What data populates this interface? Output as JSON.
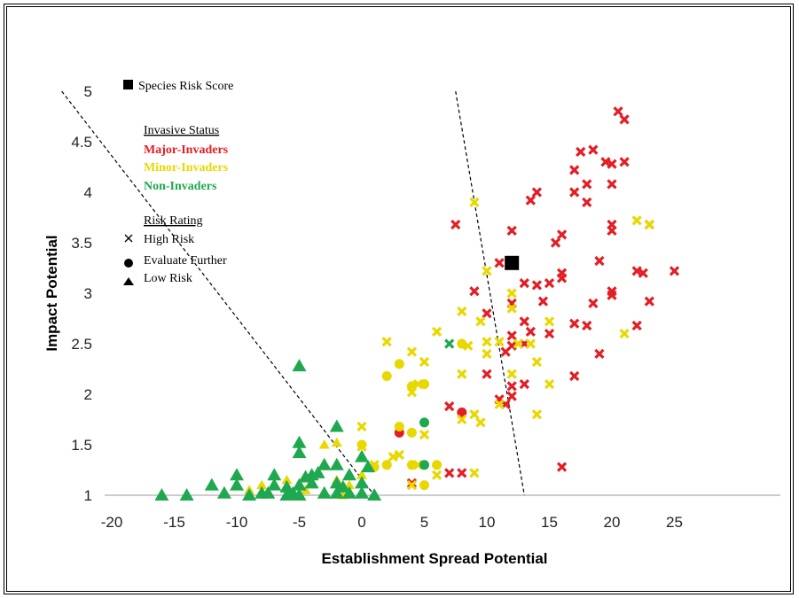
{
  "chart_data": {
    "type": "scatter",
    "title": "",
    "xlabel": "Establishment Spread Potential",
    "ylabel": "Impact Potential",
    "xlim": [
      -20,
      28
    ],
    "ylim": [
      1,
      5.2
    ],
    "xticks": [
      "-20",
      "-15",
      "-10",
      "-5",
      "0",
      "5",
      "10",
      "15",
      "20",
      "25"
    ],
    "yticks": [
      "1",
      "1.5",
      "2",
      "2.5",
      "3",
      "3.5",
      "4",
      "4.5",
      "5"
    ],
    "grid": false,
    "legend_placement": "top-left",
    "colors": {
      "major": "#e31e24",
      "minor": "#e8d800",
      "non": "#1fa84f"
    },
    "threshold_lines": [
      {
        "from": [
          -24,
          5
        ],
        "to": [
          1,
          1
        ]
      },
      {
        "from": [
          7.5,
          5
        ],
        "to": [
          13,
          1
        ]
      }
    ],
    "species_risk_score": {
      "x": 12,
      "y": 3.3
    },
    "legend": {
      "score_label": "Species Risk Score",
      "status_title": "Invasive Status",
      "status_items": [
        {
          "label": "Major-Invaders",
          "key": "major"
        },
        {
          "label": "Minor-Invaders",
          "key": "minor"
        },
        {
          "label": "Non-Invaders",
          "key": "non"
        }
      ],
      "rating_title": "Risk Rating",
      "rating_items": [
        {
          "label": "High Risk",
          "marker": "x"
        },
        {
          "label": "Evaluate Further",
          "marker": "circle"
        },
        {
          "label": "Low Risk",
          "marker": "triangle"
        }
      ]
    },
    "series": [
      {
        "status": "major",
        "marker": "x",
        "points": [
          [
            20.5,
            4.8
          ],
          [
            21,
            4.72
          ],
          [
            17.5,
            4.4
          ],
          [
            18.5,
            4.42
          ],
          [
            19.5,
            4.3
          ],
          [
            20,
            4.28
          ],
          [
            21,
            4.3
          ],
          [
            17,
            4.22
          ],
          [
            18,
            4.08
          ],
          [
            20,
            4.08
          ],
          [
            14,
            4.0
          ],
          [
            13.5,
            3.92
          ],
          [
            17,
            4.0
          ],
          [
            18,
            3.9
          ],
          [
            7.5,
            3.68
          ],
          [
            12,
            3.62
          ],
          [
            16,
            3.58
          ],
          [
            15.5,
            3.5
          ],
          [
            20,
            3.68
          ],
          [
            20,
            3.62
          ],
          [
            23,
            3.68
          ],
          [
            11,
            3.3
          ],
          [
            12,
            3.28
          ],
          [
            16,
            3.2
          ],
          [
            16,
            3.15
          ],
          [
            19,
            3.32
          ],
          [
            22,
            3.22
          ],
          [
            22.5,
            3.2
          ],
          [
            25,
            3.22
          ],
          [
            9,
            3.02
          ],
          [
            13,
            3.1
          ],
          [
            14,
            3.08
          ],
          [
            14.5,
            2.92
          ],
          [
            15,
            3.1
          ],
          [
            20,
            3.02
          ],
          [
            20,
            2.98
          ],
          [
            23,
            2.92
          ],
          [
            10,
            2.8
          ],
          [
            12,
            2.9
          ],
          [
            13,
            2.72
          ],
          [
            13.5,
            2.62
          ],
          [
            15,
            2.6
          ],
          [
            17,
            2.7
          ],
          [
            18,
            2.68
          ],
          [
            18.5,
            2.9
          ],
          [
            22,
            2.68
          ],
          [
            11.5,
            2.42
          ],
          [
            12,
            2.48
          ],
          [
            12,
            2.58
          ],
          [
            13,
            2.5
          ],
          [
            19,
            2.4
          ],
          [
            10,
            2.2
          ],
          [
            11,
            1.95
          ],
          [
            11.5,
            1.9
          ],
          [
            12,
            2.08
          ],
          [
            13,
            2.1
          ],
          [
            17,
            2.18
          ],
          [
            12,
            1.98
          ],
          [
            7,
            1.88
          ],
          [
            7,
            1.22
          ],
          [
            4,
            1.12
          ],
          [
            8,
            1.22
          ],
          [
            16,
            1.28
          ]
        ]
      },
      {
        "status": "major",
        "marker": "circle",
        "points": [
          [
            3,
            1.62
          ],
          [
            8,
            1.82
          ]
        ]
      },
      {
        "status": "minor",
        "marker": "x",
        "points": [
          [
            9,
            3.9
          ],
          [
            22,
            3.72
          ],
          [
            23,
            3.68
          ],
          [
            10,
            3.22
          ],
          [
            12,
            3.0
          ],
          [
            8,
            2.82
          ],
          [
            9.5,
            2.72
          ],
          [
            12,
            2.85
          ],
          [
            12.5,
            2.5
          ],
          [
            10,
            2.52
          ],
          [
            11,
            2.52
          ],
          [
            13.5,
            2.5
          ],
          [
            15,
            2.72
          ],
          [
            21,
            2.6
          ],
          [
            2,
            2.52
          ],
          [
            4,
            2.42
          ],
          [
            5,
            2.32
          ],
          [
            6,
            2.62
          ],
          [
            8.5,
            2.48
          ],
          [
            10,
            2.4
          ],
          [
            8,
            2.2
          ],
          [
            9.5,
            1.72
          ],
          [
            12,
            2.2
          ],
          [
            14,
            2.32
          ],
          [
            15,
            2.1
          ],
          [
            0,
            1.68
          ],
          [
            0,
            1.48
          ],
          [
            1,
            1.3
          ],
          [
            2.5,
            1.38
          ],
          [
            3,
            1.4
          ],
          [
            4,
            1.1
          ],
          [
            4.5,
            1.3
          ],
          [
            5,
            1.6
          ],
          [
            6,
            1.2
          ],
          [
            8,
            1.75
          ],
          [
            9,
            1.8
          ],
          [
            9,
            1.22
          ],
          [
            14,
            1.8
          ],
          [
            4,
            2.02
          ],
          [
            4.5,
            2.1
          ],
          [
            11,
            1.9
          ]
        ]
      },
      {
        "status": "minor",
        "marker": "circle",
        "points": [
          [
            3,
            2.3
          ],
          [
            2,
            2.18
          ],
          [
            5,
            2.1
          ],
          [
            8,
            2.5
          ],
          [
            3,
            1.68
          ],
          [
            4,
            1.62
          ],
          [
            2,
            1.3
          ],
          [
            4,
            1.3
          ],
          [
            5,
            1.1
          ],
          [
            6,
            1.3
          ],
          [
            0,
            1.5
          ],
          [
            1,
            1.28
          ],
          [
            4,
            2.08
          ]
        ]
      },
      {
        "status": "minor",
        "marker": "triangle",
        "points": [
          [
            -3,
            1.5
          ],
          [
            -2,
            1.52
          ],
          [
            -4,
            1.2
          ],
          [
            -6,
            1.15
          ],
          [
            -8,
            1.1
          ],
          [
            -9,
            1.05
          ],
          [
            -2,
            1.15
          ],
          [
            -1,
            1.1
          ],
          [
            0,
            1.2
          ],
          [
            -1.5,
            1.0
          ],
          [
            -4.5,
            1.05
          ]
        ]
      },
      {
        "status": "non",
        "marker": "x",
        "points": [
          [
            7,
            2.5
          ]
        ]
      },
      {
        "status": "non",
        "marker": "circle",
        "points": [
          [
            5,
            1.72
          ],
          [
            5,
            1.3
          ]
        ]
      },
      {
        "status": "non",
        "marker": "triangle",
        "points": [
          [
            -5,
            2.28
          ],
          [
            -2,
            1.68
          ],
          [
            -5,
            1.52
          ],
          [
            -5,
            1.42
          ],
          [
            -3,
            1.3
          ],
          [
            -2,
            1.3
          ],
          [
            0,
            1.38
          ],
          [
            -16,
            1.0
          ],
          [
            -14,
            1.0
          ],
          [
            -12,
            1.1
          ],
          [
            -11,
            1.02
          ],
          [
            -10,
            1.2
          ],
          [
            -10,
            1.1
          ],
          [
            -9,
            1.0
          ],
          [
            -8,
            1.02
          ],
          [
            -7,
            1.1
          ],
          [
            -7,
            1.2
          ],
          [
            -6,
            1.0
          ],
          [
            -6,
            1.08
          ],
          [
            -5.5,
            1.02
          ],
          [
            -5,
            1.1
          ],
          [
            -5,
            1.0
          ],
          [
            -4,
            1.2
          ],
          [
            -4,
            1.12
          ],
          [
            -3.5,
            1.22
          ],
          [
            -3,
            1.02
          ],
          [
            -2,
            1.02
          ],
          [
            -2,
            1.12
          ],
          [
            -1.5,
            1.08
          ],
          [
            -1,
            1.2
          ],
          [
            -1,
            1.02
          ],
          [
            0,
            1.12
          ],
          [
            0,
            1.02
          ],
          [
            1,
            1.0
          ],
          [
            0.5,
            1.28
          ],
          [
            -7.5,
            1.02
          ],
          [
            -4.5,
            1.18
          ]
        ]
      }
    ]
  }
}
